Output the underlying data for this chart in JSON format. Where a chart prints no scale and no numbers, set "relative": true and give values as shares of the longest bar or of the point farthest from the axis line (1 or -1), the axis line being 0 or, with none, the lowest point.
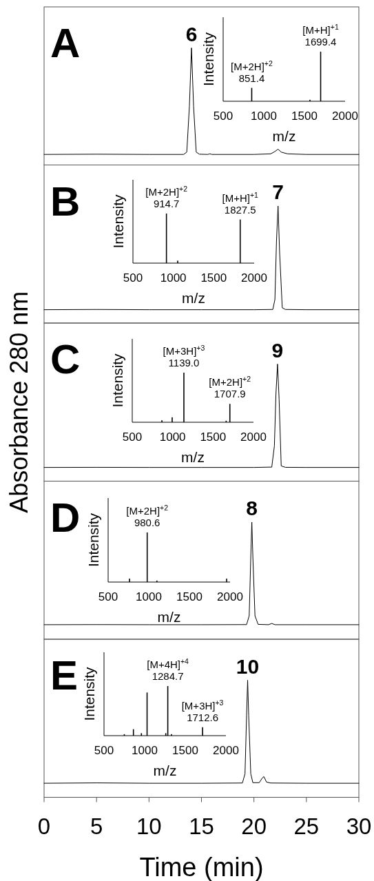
{
  "chart_data": [
    {
      "type": "line",
      "relative": true,
      "xlim": [
        0,
        30
      ],
      "tick_labels": false,
      "annotations": [
        "A",
        {
          "text": "6",
          "x": 14.05,
          "y": 1
        }
      ],
      "x": [
        0,
        5,
        10,
        13.3,
        13.6,
        13.85,
        14.05,
        14.25,
        14.5,
        14.8,
        15.6,
        15.8,
        16.0,
        20,
        21.6,
        22.0,
        22.3,
        22.6,
        23.2,
        25,
        30
      ],
      "series": [
        {
          "color": "#000000",
          "values": [
            0.09,
            0.092,
            0.09,
            0.09,
            0.11,
            0.5,
            1,
            0.5,
            0.11,
            0.092,
            0.09,
            0.095,
            0.09,
            0.09,
            0.095,
            0.115,
            0.135,
            0.11,
            0.095,
            0.09,
            0.09
          ]
        }
      ]
    },
    {
      "type": "bar",
      "relative": true,
      "xlim": [
        500,
        2000
      ],
      "xticks": [
        500,
        1000,
        1500,
        2000
      ],
      "tick_labels": "x",
      "xlabel": "m/z",
      "ylabel": "Intensity",
      "x": [
        851.4,
        1568,
        1699.4
      ],
      "series": [
        {
          "color": "#000000",
          "values": [
            0.27,
            0.03,
            1
          ]
        }
      ],
      "annotations": [
        {
          "text": "[M+2H]$^{+2}$\n851.4",
          "x": 851.4,
          "y": 0.27
        },
        {
          "text": "[M+H]$^{+1}$\n1699.4",
          "x": 1699.4,
          "y": 1
        }
      ]
    },
    {
      "type": "line",
      "relative": true,
      "xlim": [
        0,
        30
      ],
      "tick_labels": false,
      "annotations": [
        "B",
        {
          "text": "7",
          "x": 22.3,
          "y": 1
        }
      ],
      "x": [
        0,
        5,
        10,
        15,
        20,
        21.8,
        22.0,
        22.15,
        22.3,
        22.45,
        22.7,
        23,
        25,
        30
      ],
      "series": [
        {
          "color": "#000000",
          "values": [
            0.114,
            0.116,
            0.114,
            0.114,
            0.114,
            0.116,
            0.2,
            0.7,
            1,
            0.6,
            0.13,
            0.116,
            0.114,
            0.114
          ]
        }
      ]
    },
    {
      "type": "bar",
      "relative": true,
      "xlim": [
        500,
        2000
      ],
      "xticks": [
        500,
        1000,
        1500,
        2000
      ],
      "tick_labels": "x",
      "xlabel": "m/z",
      "ylabel": "Intensity",
      "x": [
        914.7,
        1054,
        1827.5
      ],
      "series": [
        {
          "color": "#000000",
          "values": [
            1,
            0.05,
            0.88
          ]
        }
      ],
      "annotations": [
        {
          "text": "[M+2H]$^{+2}$\n914.7",
          "x": 914.7,
          "y": 1
        },
        {
          "text": "[M+H]$^{+1}$\n1827.5",
          "x": 1827.5,
          "y": 0.88
        }
      ]
    },
    {
      "type": "line",
      "relative": true,
      "xlim": [
        0,
        30
      ],
      "tick_labels": false,
      "ylabel": "Absorbance 280 nm",
      "annotations": [
        "C",
        {
          "text": "9",
          "x": 22.25,
          "y": 1
        }
      ],
      "x": [
        0,
        5,
        10,
        15,
        20,
        21.7,
        21.95,
        22.1,
        22.25,
        22.4,
        22.6,
        23,
        25,
        30
      ],
      "series": [
        {
          "color": "#000000",
          "values": [
            0.117,
            0.118,
            0.117,
            0.117,
            0.117,
            0.12,
            0.3,
            0.75,
            1,
            0.7,
            0.13,
            0.118,
            0.117,
            0.117
          ]
        }
      ]
    },
    {
      "type": "bar",
      "relative": true,
      "xlim": [
        500,
        2000
      ],
      "xticks": [
        500,
        1000,
        1500,
        2000
      ],
      "tick_labels": "x",
      "xlabel": "m/z",
      "ylabel": "Intensity",
      "x": [
        867,
        994,
        1139.0,
        1662,
        1707.9
      ],
      "series": [
        {
          "color": "#000000",
          "values": [
            0.04,
            0.1,
            1,
            0.03,
            0.37
          ]
        }
      ],
      "annotations": [
        {
          "text": "[M+3H]$^{+3}$\n1139.0",
          "x": 1139.0,
          "y": 1
        },
        {
          "text": "[M+2H]$^{+2}$\n1707.9",
          "x": 1707.9,
          "y": 0.37
        }
      ]
    },
    {
      "type": "line",
      "relative": true,
      "xlim": [
        0,
        30
      ],
      "tick_labels": false,
      "annotations": [
        "D",
        {
          "text": "8",
          "x": 19.8,
          "y": 1
        }
      ],
      "x": [
        0,
        5,
        10,
        15,
        19.3,
        19.55,
        19.7,
        19.8,
        19.9,
        20.1,
        20.4,
        21.4,
        21.7,
        22,
        25,
        30
      ],
      "series": [
        {
          "color": "#000000",
          "values": [
            0.124,
            0.125,
            0.124,
            0.124,
            0.125,
            0.2,
            0.7,
            1,
            0.7,
            0.2,
            0.127,
            0.124,
            0.135,
            0.124,
            0.124,
            0.124
          ]
        }
      ]
    },
    {
      "type": "bar",
      "relative": true,
      "xlim": [
        500,
        2000
      ],
      "xticks": [
        500,
        1000,
        1500,
        2000
      ],
      "tick_labels": "x",
      "xlabel": "m/z",
      "ylabel": "Intensity",
      "x": [
        763,
        980.6,
        1100,
        1958
      ],
      "series": [
        {
          "color": "#000000",
          "values": [
            0.07,
            1,
            0.03,
            0.07
          ]
        }
      ],
      "annotations": [
        {
          "text": "[M+2H]$^{+2}$\n980.6",
          "x": 980.6,
          "y": 1
        }
      ]
    },
    {
      "type": "line",
      "relative": true,
      "xlim": [
        0,
        30
      ],
      "xticks": [
        0,
        5,
        10,
        15,
        20,
        25,
        30
      ],
      "tick_labels": "x",
      "xlabel": "Time (min)",
      "annotations": [
        "E",
        {
          "text": "10",
          "x": 19.4,
          "y": 1
        }
      ],
      "x": [
        0,
        5,
        10,
        15,
        18.9,
        19.15,
        19.3,
        19.4,
        19.5,
        19.7,
        19.9,
        20.5,
        20.8,
        20.95,
        21.2,
        21.6,
        25,
        30
      ],
      "series": [
        {
          "color": "#000000",
          "values": [
            0.12,
            0.123,
            0.12,
            0.12,
            0.122,
            0.2,
            0.7,
            1,
            0.7,
            0.2,
            0.125,
            0.125,
            0.165,
            0.177,
            0.13,
            0.122,
            0.12,
            0.12
          ]
        }
      ]
    },
    {
      "type": "bar",
      "relative": true,
      "xlim": [
        500,
        2000
      ],
      "xticks": [
        500,
        1000,
        1500,
        2000
      ],
      "tick_labels": "x",
      "xlabel": "m/z",
      "ylabel": "Intensity",
      "x": [
        750,
        862,
        960,
        1030,
        1260,
        1284.7,
        1330,
        1712.6
      ],
      "series": [
        {
          "color": "#000000",
          "values": [
            0.03,
            0.13,
            0.05,
            0.87,
            0.05,
            1,
            0.03,
            0.17
          ]
        }
      ],
      "annotations": [
        {
          "text": "[M+4H]$^{+4}$\n1284.7",
          "x": 1284.7,
          "y": 1
        },
        {
          "text": "[M+3H]$^{+3}$\n1712.6",
          "x": 1712.6,
          "y": 0.17
        }
      ]
    }
  ]
}
